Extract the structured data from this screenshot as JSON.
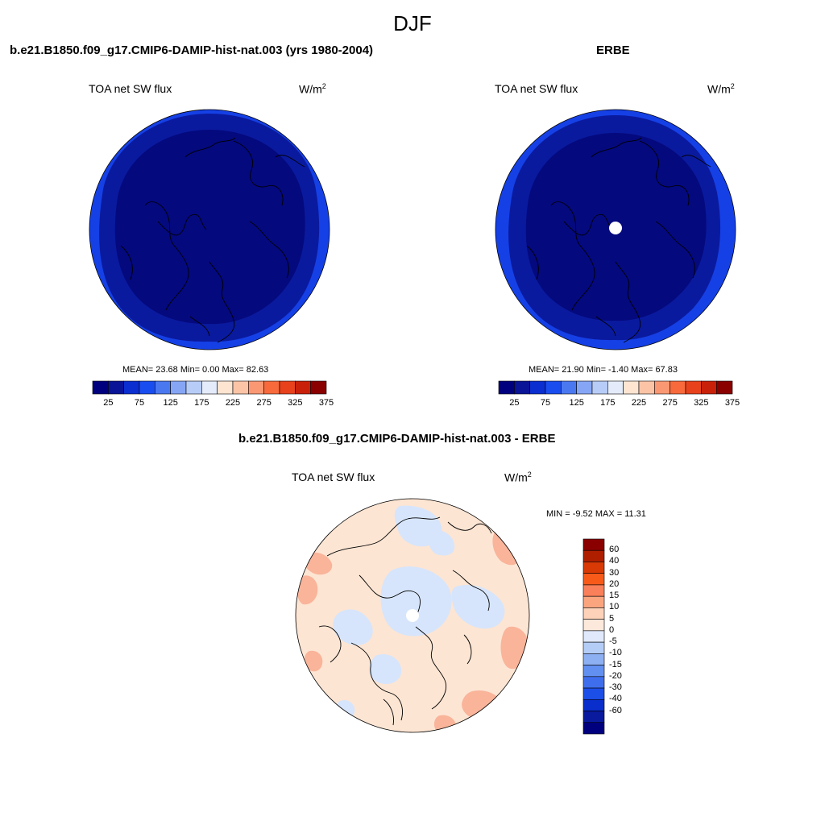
{
  "title": "DJF",
  "panel_left": {
    "title": "b.e21.B1850.f09_g17.CMIP6-DAMIP-hist-nat.003 (yrs 1980-2004)",
    "variable": "TOA net SW flux",
    "units_base": "W/m",
    "units_exp": "2",
    "stats": "MEAN=  23.68  Min=   0.00  Max=  82.63"
  },
  "panel_right": {
    "title": "ERBE",
    "variable": "TOA net SW flux",
    "units_base": "W/m",
    "units_exp": "2",
    "stats": "MEAN=  21.90  Min=  -1.40  Max=  67.83"
  },
  "panel_diff": {
    "title": "b.e21.B1850.f09_g17.CMIP6-DAMIP-hist-nat.003 - ERBE",
    "variable": "TOA net SW flux",
    "units_base": "W/m",
    "units_exp": "2",
    "stats": "MIN =  -9.52 MAX =  11.31"
  },
  "colorbar_abs": {
    "colors": [
      "#00007f",
      "#0a1496",
      "#0a2ed0",
      "#1a4df0",
      "#4a78f0",
      "#86a6f5",
      "#b8ccf8",
      "#e4ecfb",
      "#fde5d2",
      "#fcc4a6",
      "#fa9873",
      "#f86a3c",
      "#e8421c",
      "#c9200a",
      "#8a0000"
    ],
    "labels": [
      "25",
      "75",
      "125",
      "175",
      "225",
      "275",
      "325",
      "375"
    ]
  },
  "colorbar_diff": {
    "colors_top_to_bottom": [
      "#8a0000",
      "#b01e00",
      "#d93a05",
      "#f85a1a",
      "#f9805a",
      "#fba57f",
      "#fdd2b8",
      "#fde8dc",
      "#dfe9fb",
      "#b4cdf7",
      "#8db0f3",
      "#6290f0",
      "#3f6eed",
      "#1c4ee8",
      "#0a2ecc",
      "#0a1a9e",
      "#00007f"
    ],
    "labels": [
      "60",
      "40",
      "30",
      "20",
      "15",
      "10",
      "5",
      "0",
      "-5",
      "-10",
      "-15",
      "-20",
      "-30",
      "-40",
      "-60"
    ]
  },
  "map_colors": {
    "outer_band": "#1540e6",
    "mid_band": "#0a1a9e",
    "inner": "#04097e",
    "diff_base": "#fde5d3",
    "diff_pos": "#f9b49a",
    "diff_neg": "#d6e5fb"
  }
}
